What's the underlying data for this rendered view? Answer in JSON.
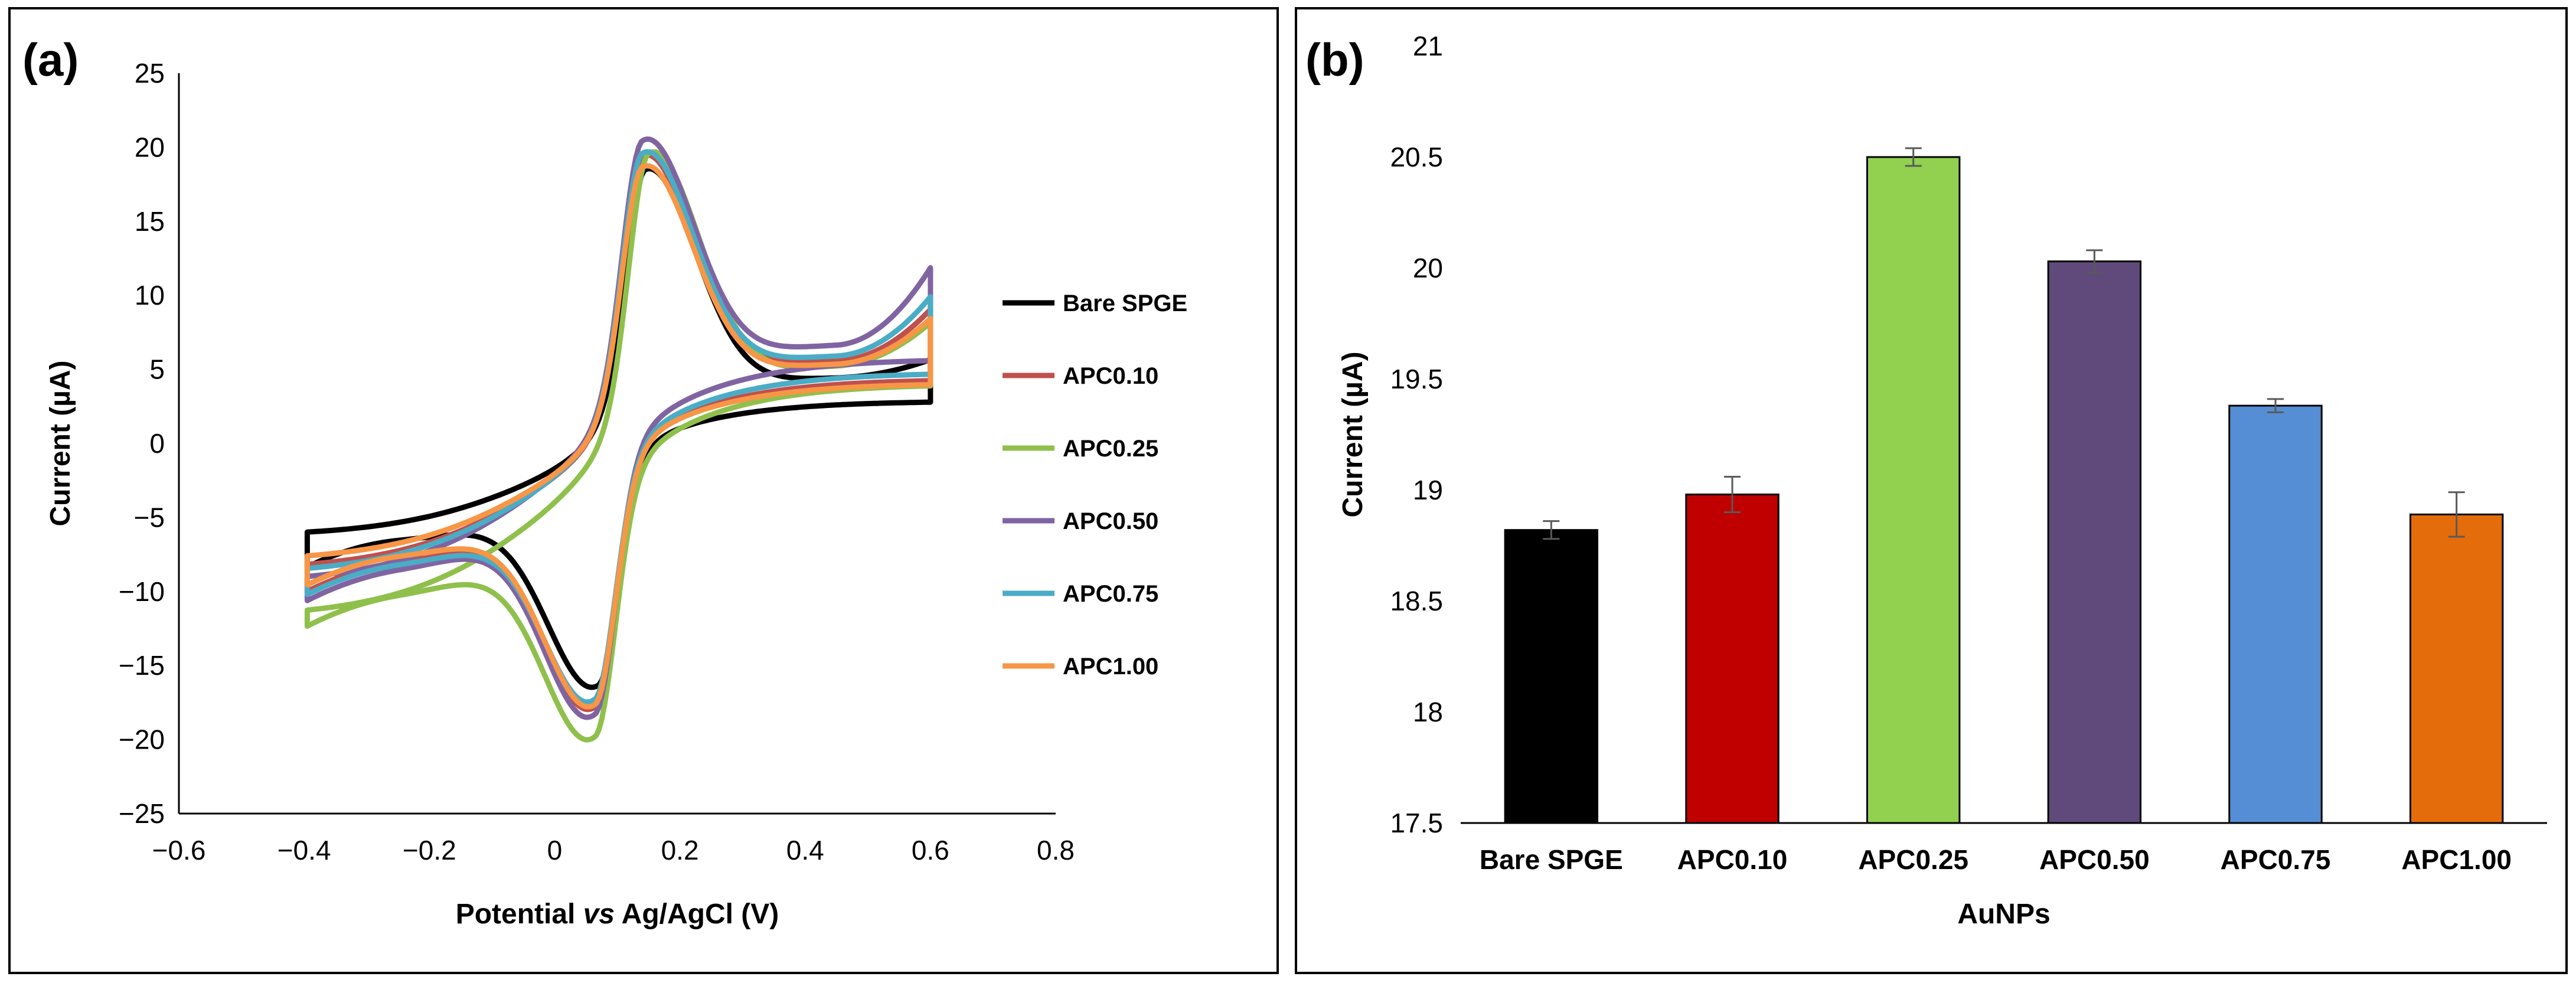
{
  "panels": {
    "a": {
      "label": "(a)"
    },
    "b": {
      "label": "(b)"
    }
  },
  "chart_data": [
    {
      "type": "line",
      "panel": "(a)",
      "xlabel_parts": [
        "Potential ",
        "vs",
        " Ag/AgCl (V)"
      ],
      "ylabel": "Current (µA)",
      "xlim": [
        -0.6,
        0.8
      ],
      "ylim": [
        -25,
        25
      ],
      "xticks": [
        "−0.6",
        "−0.4",
        "−0.2",
        "0",
        "0.2",
        "0.4",
        "0.6",
        "0.8"
      ],
      "xtick_values": [
        -0.6,
        -0.4,
        -0.2,
        0,
        0.2,
        0.4,
        0.6,
        0.8
      ],
      "yticks": [
        "25",
        "20",
        "15",
        "10",
        "5",
        "0",
        "−5",
        "−10",
        "−15",
        "−20",
        "−25"
      ],
      "ytick_values": [
        25,
        20,
        15,
        10,
        5,
        0,
        -5,
        -10,
        -15,
        -20,
        -25
      ],
      "grid": false,
      "legend_position": "right",
      "series": [
        {
          "name": "Bare SPGE",
          "color": "#000000",
          "ipa": 19.0,
          "ipc": -19.7,
          "epa": 0.145,
          "epc": 0.07,
          "i_start": -6.3,
          "i_end": 5.2,
          "anodic_base": 5.2,
          "cathodic_base": -6.3,
          "tail_end": 5.6
        },
        {
          "name": "APC0.10",
          "color": "#c0504d",
          "ipa": 19.6,
          "ipc": -21.0,
          "epa": 0.14,
          "epc": 0.065,
          "i_start": -8.6,
          "i_end": 7.9,
          "anodic_base": 7.9,
          "cathodic_base": -8.6,
          "tail_end": 7.8
        },
        {
          "name": "APC0.25",
          "color": "#8fc04c",
          "ipa": 20.5,
          "ipc": -21.7,
          "epa": 0.15,
          "epc": 0.065,
          "i_start": -11.8,
          "i_end": 7.3,
          "anodic_base": 7.3,
          "cathodic_base": -11.8,
          "tail_end": 7.2
        },
        {
          "name": "APC0.50",
          "color": "#8064a2",
          "ipa": 20.0,
          "ipc": -21.9,
          "epa": 0.14,
          "epc": 0.065,
          "i_start": -9.5,
          "i_end": 10.4,
          "anodic_base": 10.4,
          "cathodic_base": -9.5,
          "tail_end": 9.5
        },
        {
          "name": "APC0.75",
          "color": "#4bacc6",
          "ipa": 19.6,
          "ipc": -20.6,
          "epa": 0.14,
          "epc": 0.065,
          "i_start": -8.9,
          "i_end": 8.7,
          "anodic_base": 8.7,
          "cathodic_base": -8.9,
          "tail_end": 8.3
        },
        {
          "name": "APC1.00",
          "color": "#f79646",
          "ipa": 18.9,
          "ipc": -20.9,
          "epa": 0.14,
          "epc": 0.065,
          "i_start": -8.0,
          "i_end": 7.4,
          "anodic_base": 7.4,
          "cathodic_base": -8.0,
          "tail_end": 7.4
        }
      ]
    },
    {
      "type": "bar",
      "panel": "(b)",
      "xlabel": "AuNPs",
      "ylabel": "Current (µA)",
      "ylim": [
        17.5,
        21
      ],
      "yticks": [
        "21",
        "20.5",
        "20",
        "19.5",
        "19",
        "18.5",
        "18",
        "17.5"
      ],
      "ytick_values": [
        21,
        20.5,
        20,
        19.5,
        19,
        18.5,
        18,
        17.5
      ],
      "grid": false,
      "categories": [
        "Bare SPGE",
        "APC0.10",
        "APC0.25",
        "APC0.50",
        "APC0.75",
        "APC1.00"
      ],
      "values": [
        18.82,
        18.98,
        20.5,
        20.03,
        19.38,
        18.89
      ],
      "errors": [
        0.04,
        0.08,
        0.04,
        0.05,
        0.03,
        0.1
      ],
      "colors": [
        "#000000",
        "#c00000",
        "#92d050",
        "#604a7b",
        "#558ed5",
        "#e46c0a"
      ]
    }
  ]
}
